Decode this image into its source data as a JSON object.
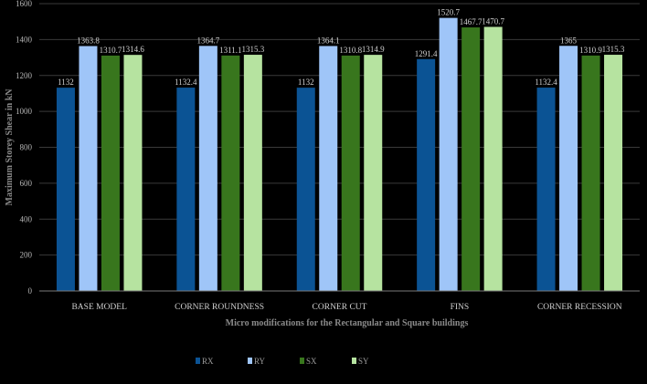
{
  "chart_data": {
    "type": "bar",
    "title": "",
    "xlabel": "Micro modifications for the Rectangular and Square buildings",
    "ylabel": "Maximum Storey Shear in kN",
    "ylim": [
      0,
      1600
    ],
    "yticks": [
      0,
      200,
      400,
      600,
      800,
      1000,
      1200,
      1400,
      1600
    ],
    "grid": true,
    "legend_position": "bottom",
    "categories": [
      "BASE MODEL",
      "CORNER ROUNDNESS",
      "CORNER CUT",
      "FINS",
      "CORNER RECESSION"
    ],
    "series": [
      {
        "name": "RX",
        "color": "#0b5394",
        "values": [
          1132,
          1132.4,
          1132,
          1291.4,
          1132.4
        ],
        "labels": [
          "1132",
          "1132.4",
          "1132",
          "1291.4",
          "1132.4"
        ]
      },
      {
        "name": "RY",
        "color": "#9fc5f8",
        "values": [
          1363.8,
          1364.7,
          1364.1,
          1520.7,
          1365
        ],
        "labels": [
          "1363.8",
          "1364.7",
          "1364.1",
          "1520.7",
          "1365"
        ]
      },
      {
        "name": "SX",
        "color": "#38761d",
        "values": [
          1310.7,
          1311.1,
          1310.8,
          1467.7,
          1310.9
        ],
        "labels": [
          "1310.7",
          "1311.1",
          "1310.8",
          "1467.7",
          "1310.9"
        ]
      },
      {
        "name": "SY",
        "color": "#b6e3a0",
        "values": [
          1314.6,
          1315.3,
          1314.9,
          1470.7,
          1315.3
        ],
        "labels": [
          "1314.6",
          "1315.3",
          "1314.9",
          "1470.7",
          "1315.3"
        ]
      }
    ]
  }
}
